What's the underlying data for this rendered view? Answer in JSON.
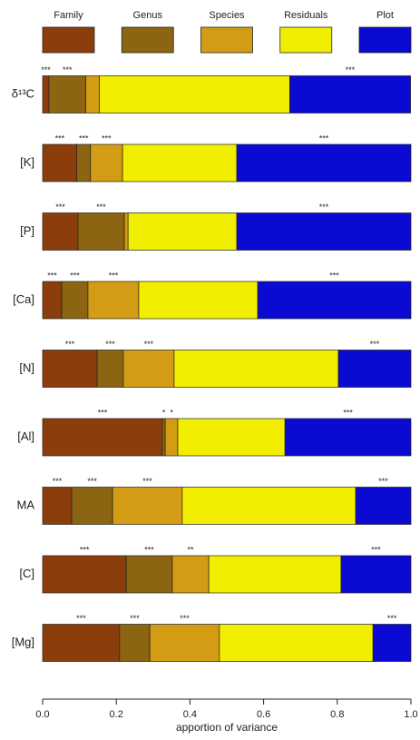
{
  "chart_data": {
    "type": "bar",
    "orientation": "horizontal",
    "stacked": true,
    "legend": "top",
    "x_label": "apportion of variance",
    "categories": [
      "δ¹³C",
      "[K]",
      "[P]",
      "[Ca]",
      "[N]",
      "[Al]",
      "MA",
      "[C]",
      "[Mg]"
    ],
    "series": [
      {
        "name": "Family",
        "color": "#8b3e0c",
        "values": [
          0.017,
          0.093,
          0.096,
          0.052,
          0.148,
          0.325,
          0.079,
          0.227,
          0.209
        ],
        "significance": [
          "***",
          "***",
          "***",
          "***",
          "***",
          "***",
          "***",
          "***",
          "***"
        ]
      },
      {
        "name": "Genus",
        "color": "#8b6512",
        "values": [
          0.1,
          0.037,
          0.126,
          0.071,
          0.071,
          0.008,
          0.111,
          0.125,
          0.082
        ],
        "significance": [
          "***",
          "***",
          "***",
          "***",
          "***",
          "*",
          "***",
          "***",
          "***"
        ]
      },
      {
        "name": "Species",
        "color": "#d49b14",
        "values": [
          0.037,
          0.087,
          0.01,
          0.138,
          0.138,
          0.034,
          0.189,
          0.099,
          0.189
        ],
        "significance": [
          null,
          "***",
          null,
          "***",
          "***",
          "*",
          "***",
          "**",
          "***"
        ]
      },
      {
        "name": "Residuals",
        "color": "#f2ee00",
        "values": [
          0.517,
          0.31,
          0.295,
          0.323,
          0.446,
          0.291,
          0.471,
          0.359,
          0.417
        ]
      },
      {
        "name": "Plot",
        "color": "#0a0ad2",
        "values": [
          0.328,
          0.473,
          0.473,
          0.416,
          0.197,
          0.342,
          0.15,
          0.19,
          0.103
        ],
        "significance": [
          "***",
          "***",
          "***",
          "***",
          "***",
          "***",
          "***",
          "***",
          "***"
        ]
      }
    ],
    "xlim": [
      0,
      1
    ],
    "xticks": [
      {
        "value": 0,
        "label": "0.0"
      },
      0.2,
      0.4,
      0.6,
      0.8,
      {
        "value": 1,
        "label": "1.0"
      }
    ]
  }
}
